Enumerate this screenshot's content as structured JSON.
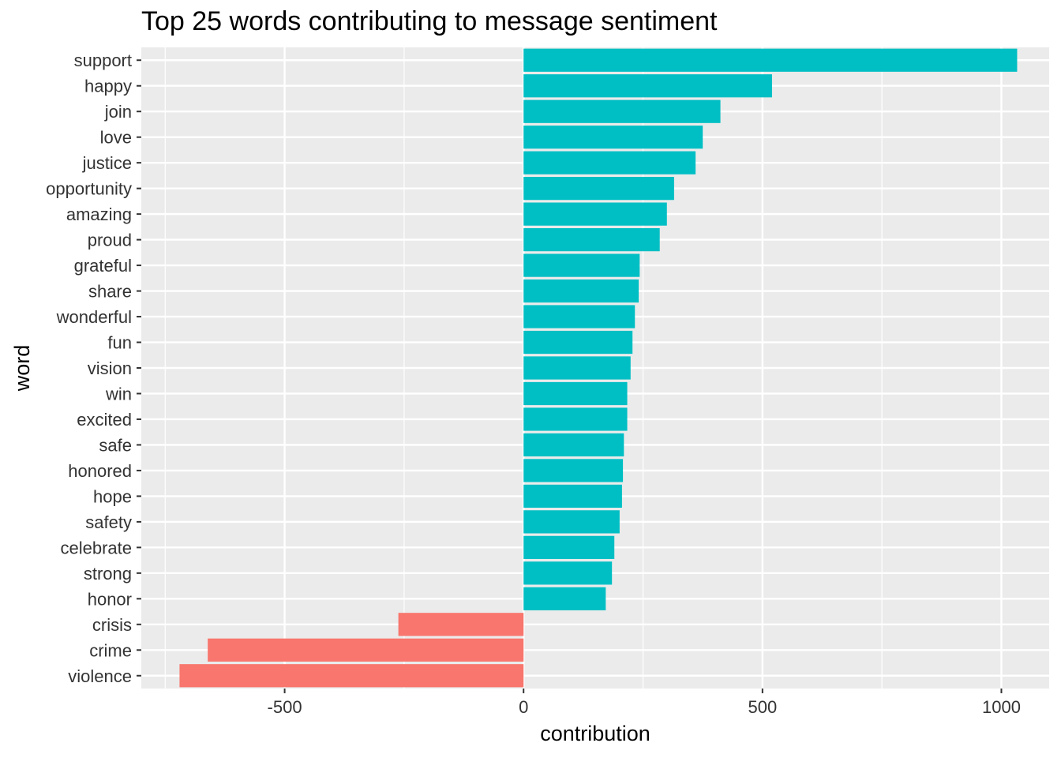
{
  "chart_data": {
    "type": "bar",
    "orientation": "horizontal",
    "title": "Top 25 words contributing to message sentiment",
    "xlabel": "contribution",
    "ylabel": "word",
    "xlim": [
      -800,
      1100
    ],
    "x_ticks": [
      -500,
      0,
      500,
      1000
    ],
    "grid": true,
    "legend": "none",
    "colors": {
      "positive": "#00BFC4",
      "negative": "#F8766D",
      "panel": "#EBEBEB",
      "grid": "#FFFFFF"
    },
    "categories": [
      "support",
      "happy",
      "join",
      "love",
      "justice",
      "opportunity",
      "amazing",
      "proud",
      "grateful",
      "share",
      "wonderful",
      "fun",
      "vision",
      "win",
      "excited",
      "safe",
      "honored",
      "hope",
      "safety",
      "celebrate",
      "strong",
      "honor",
      "crisis",
      "crime",
      "violence"
    ],
    "values": [
      1033,
      520,
      412,
      375,
      360,
      315,
      300,
      285,
      243,
      241,
      233,
      228,
      224,
      217,
      217,
      210,
      208,
      206,
      201,
      190,
      185,
      172,
      -262,
      -661,
      -720
    ]
  }
}
